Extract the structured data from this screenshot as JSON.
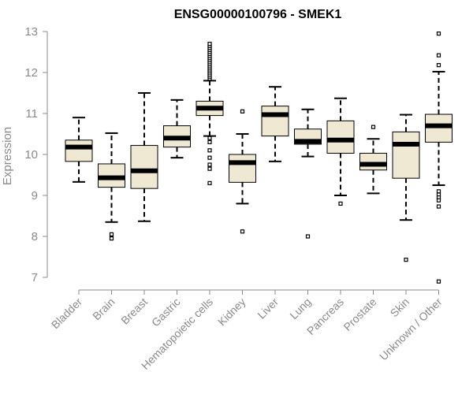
{
  "chart_data": {
    "type": "boxplot",
    "title": "ENSG00000100796 - SMEK1",
    "xlabel": "",
    "ylabel": "Expression",
    "ylim": [
      7,
      13
    ],
    "yticks": [
      7,
      8,
      9,
      10,
      11,
      12,
      13
    ],
    "colors": {
      "box_fill": "#efe8d2",
      "stroke": "#000000",
      "axis": "#8a8a8a"
    },
    "categories": [
      "Bladder",
      "Brain",
      "Breast",
      "Gastric",
      "Hematopoietic cells",
      "Kidney",
      "Liver",
      "Lung",
      "Pancreas",
      "Prostate",
      "Skin",
      "Unknown / Other"
    ],
    "boxes": [
      {
        "q1": 9.83,
        "median": 10.18,
        "q3": 10.35,
        "whisker_low": 9.33,
        "whisker_high": 10.9,
        "outliers": []
      },
      {
        "q1": 9.2,
        "median": 9.43,
        "q3": 9.77,
        "whisker_low": 8.35,
        "whisker_high": 10.52,
        "outliers": [
          8.05,
          7.95
        ]
      },
      {
        "q1": 9.17,
        "median": 9.6,
        "q3": 10.22,
        "whisker_low": 8.37,
        "whisker_high": 11.5,
        "outliers": []
      },
      {
        "q1": 10.18,
        "median": 10.4,
        "q3": 10.7,
        "whisker_low": 9.92,
        "whisker_high": 11.33,
        "outliers": []
      },
      {
        "q1": 10.95,
        "median": 11.13,
        "q3": 11.3,
        "whisker_low": 10.45,
        "whisker_high": 11.8,
        "outliers": [
          11.85,
          11.9,
          11.95,
          12.0,
          12.05,
          12.1,
          12.15,
          12.2,
          12.25,
          12.3,
          12.35,
          12.4,
          12.45,
          12.5,
          12.55,
          12.6,
          12.65,
          12.7,
          10.4,
          10.3,
          10.1,
          9.92,
          9.75,
          9.65,
          9.3
        ]
      },
      {
        "q1": 9.32,
        "median": 9.8,
        "q3": 10.0,
        "whisker_low": 8.8,
        "whisker_high": 10.5,
        "outliers": [
          11.05,
          8.12
        ]
      },
      {
        "q1": 10.45,
        "median": 10.97,
        "q3": 11.18,
        "whisker_low": 9.83,
        "whisker_high": 11.65,
        "outliers": []
      },
      {
        "q1": 10.25,
        "median": 10.32,
        "q3": 10.62,
        "whisker_low": 9.95,
        "whisker_high": 11.1,
        "outliers": [
          8.0
        ]
      },
      {
        "q1": 10.03,
        "median": 10.35,
        "q3": 10.82,
        "whisker_low": 9.0,
        "whisker_high": 11.37,
        "outliers": [
          8.8
        ]
      },
      {
        "q1": 9.62,
        "median": 9.76,
        "q3": 10.03,
        "whisker_low": 9.05,
        "whisker_high": 10.38,
        "outliers": [
          10.67
        ]
      },
      {
        "q1": 9.42,
        "median": 10.25,
        "q3": 10.55,
        "whisker_low": 8.4,
        "whisker_high": 10.97,
        "outliers": [
          7.43
        ]
      },
      {
        "q1": 10.3,
        "median": 10.7,
        "q3": 10.98,
        "whisker_low": 9.25,
        "whisker_high": 12.02,
        "outliers": [
          12.95,
          12.42,
          12.18,
          9.1,
          9.02,
          8.95,
          8.88,
          8.73,
          6.9
        ]
      }
    ]
  }
}
